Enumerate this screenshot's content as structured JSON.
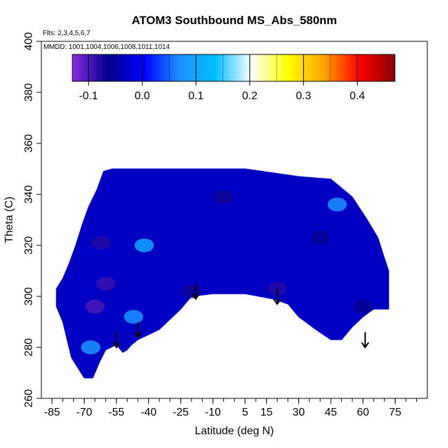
{
  "chart_data": {
    "type": "heatmap",
    "title": "ATOM3 Southbound MS_Abs_580nm",
    "flights_note": "Flts: 2,3,4,5,6,7",
    "dates_note": "MMDD: 1001,1004,1006,1008,1011,1014",
    "xlabel": "Latitude (deg N)",
    "ylabel": "Theta (C)",
    "xlim": [
      -90,
      90
    ],
    "ylim": [
      260,
      400
    ],
    "x_ticks": [
      -85,
      -70,
      -55,
      -40,
      -25,
      -10,
      5,
      15,
      30,
      45,
      60,
      75
    ],
    "y_ticks": [
      260,
      280,
      300,
      320,
      340,
      360,
      380,
      400
    ],
    "colorbar": {
      "min": -0.13,
      "max": 0.47,
      "ticks": [
        -0.1,
        0.0,
        0.1,
        0.2,
        0.3,
        0.4
      ],
      "tick_labels": [
        "-0.1",
        "0.0",
        "0.1",
        "0.2",
        "0.3",
        "0.4"
      ],
      "colors": [
        "#8a2be2",
        "#00008b",
        "#0000ff",
        "#1e90ff",
        "#00bfff",
        "#ffffff",
        "#ffff00",
        "#ffa500",
        "#ff0000",
        "#8b0000"
      ]
    },
    "field_value_typical": -0.03,
    "tropopause_arrows_lat": [
      -55,
      -45,
      -18,
      20,
      61
    ],
    "tropopause_arrows_theta": [
      280,
      284,
      299,
      297,
      280
    ],
    "domain_top_boundary": [
      [
        -83,
        303
      ],
      [
        -80,
        307
      ],
      [
        -77,
        313
      ],
      [
        -74,
        320
      ],
      [
        -71,
        328
      ],
      [
        -68,
        335
      ],
      [
        -64,
        342
      ],
      [
        -61,
        349
      ],
      [
        -57,
        350
      ],
      [
        -20,
        350
      ],
      [
        5,
        350
      ],
      [
        30,
        347
      ],
      [
        45,
        346
      ],
      [
        55,
        339
      ],
      [
        62,
        330
      ],
      [
        67,
        323
      ],
      [
        70,
        315
      ],
      [
        72,
        310
      ]
    ],
    "domain_bottom_boundary": [
      [
        72,
        295
      ],
      [
        65,
        295
      ],
      [
        60,
        292
      ],
      [
        55,
        288
      ],
      [
        50,
        283
      ],
      [
        45,
        283
      ],
      [
        38,
        287
      ],
      [
        30,
        292
      ],
      [
        25,
        297
      ],
      [
        18,
        299
      ],
      [
        5,
        301
      ],
      [
        -10,
        301
      ],
      [
        -20,
        300
      ],
      [
        -25,
        295
      ],
      [
        -30,
        291
      ],
      [
        -35,
        287
      ],
      [
        -40,
        285
      ],
      [
        -45,
        283
      ],
      [
        -48,
        281
      ],
      [
        -50,
        279
      ],
      [
        -52,
        278
      ],
      [
        -55,
        281
      ],
      [
        -60,
        279
      ],
      [
        -63,
        274
      ],
      [
        -66,
        268
      ],
      [
        -70,
        268
      ],
      [
        -73,
        272
      ],
      [
        -76,
        276
      ],
      [
        -78,
        283
      ],
      [
        -80,
        290
      ],
      [
        -83,
        296
      ]
    ],
    "anomalies": [
      {
        "lat": -65,
        "theta": 296,
        "value": -0.1
      },
      {
        "lat": -62,
        "theta": 321,
        "value": -0.08
      },
      {
        "lat": -47,
        "theta": 292,
        "value": 0.08
      },
      {
        "lat": -42,
        "theta": 320,
        "value": 0.1
      },
      {
        "lat": -67,
        "theta": 280,
        "value": 0.08
      },
      {
        "lat": -60,
        "theta": 305,
        "value": -0.09
      },
      {
        "lat": -20,
        "theta": 302,
        "value": -0.07
      },
      {
        "lat": 20,
        "theta": 303,
        "value": -0.08
      },
      {
        "lat": 40,
        "theta": 323,
        "value": -0.06
      },
      {
        "lat": 48,
        "theta": 336,
        "value": 0.07
      },
      {
        "lat": -5,
        "theta": 339,
        "value": -0.07
      },
      {
        "lat": 60,
        "theta": 296,
        "value": -0.06
      }
    ]
  }
}
